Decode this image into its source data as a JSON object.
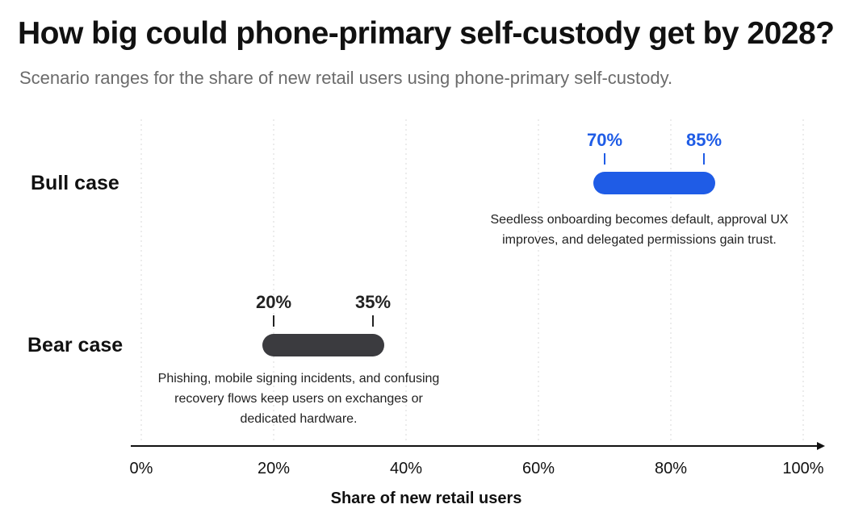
{
  "title": "How big could phone-primary self-custody get by 2028?",
  "subtitle": "Scenario ranges for the share of new retail users using phone-primary self-custody.",
  "chart_data": {
    "type": "range-bar",
    "xlabel": "Share of new retail users",
    "xlim": [
      0,
      100
    ],
    "x_ticks": [
      "0%",
      "20%",
      "40%",
      "60%",
      "80%",
      "100%"
    ],
    "grid": "vertical dotted",
    "series": [
      {
        "name": "Bull case",
        "low": 70,
        "high": 85,
        "low_label": "70%",
        "high_label": "85%",
        "color": "#1f5ce6",
        "label_color": "#1f5ce6",
        "note": "Seedless onboarding becomes default, approval UX improves, and delegated permissions gain trust."
      },
      {
        "name": "Bear case",
        "low": 20,
        "high": 35,
        "low_label": "20%",
        "high_label": "35%",
        "color": "#3b3b3f",
        "label_color": "#222222",
        "note": "Phishing, mobile signing incidents, and confusing recovery flows keep users on exchanges or dedicated hardware."
      }
    ]
  }
}
